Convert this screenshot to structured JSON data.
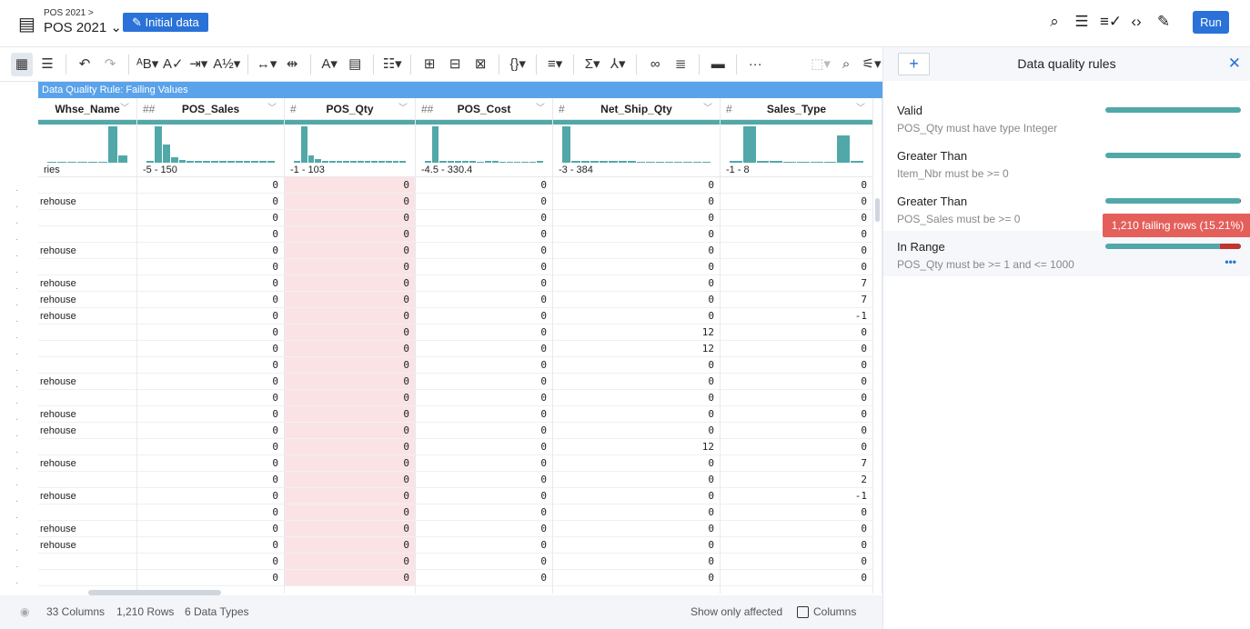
{
  "header": {
    "breadcrumb": "POS 2021 >",
    "title": "POS 2021 ⌄",
    "badge": "✎ Initial data",
    "run_label": "Run",
    "icons": [
      "search-icon",
      "list-icon",
      "checklist-icon",
      "code-icon",
      "eyedropper-icon"
    ]
  },
  "toolbar": {
    "items": [
      "grid-view-icon",
      "list-view-icon",
      "undo-icon",
      "redo-icon",
      "rename-icon",
      "compare-icon",
      "move-icon",
      "sort-icon",
      "split-icon",
      "merge-icon",
      "text-format-icon",
      "new-column-icon",
      "group-icon",
      "pivot-icon",
      "unpivot-icon",
      "transpose-icon",
      "json-icon",
      "filter-icon",
      "sum-icon",
      "branch-icon",
      "join-icon",
      "union-icon",
      "comment-icon",
      "more-icon",
      "select-icon",
      "lookup-icon",
      "settings-icon"
    ]
  },
  "grid": {
    "banner": "Data Quality Rule: Failing Values",
    "columns": [
      {
        "name": "Whse_Name",
        "type": "",
        "range": "ries",
        "hist": [
          0,
          0,
          0,
          0,
          0,
          0,
          100,
          20
        ]
      },
      {
        "name": "POS_Sales",
        "type": "##",
        "range": "-5 - 150",
        "hist": [
          5,
          100,
          50,
          15,
          8,
          5,
          5,
          5,
          5,
          5,
          5,
          5,
          5,
          5,
          5,
          5
        ]
      },
      {
        "name": "POS_Qty",
        "type": "#",
        "range": "-1 - 103",
        "hist": [
          5,
          100,
          20,
          10,
          5,
          5,
          5,
          5,
          5,
          5,
          5,
          5,
          5,
          5,
          5,
          5
        ]
      },
      {
        "name": "POS_Cost",
        "type": "##",
        "range": "-4.5 - 330.4",
        "hist": [
          5,
          100,
          5,
          5,
          5,
          5,
          5,
          3,
          5,
          5,
          3,
          3,
          3,
          3,
          3,
          5
        ]
      },
      {
        "name": "Net_Ship_Qty",
        "type": "#",
        "range": "-3 - 384",
        "hist": [
          100,
          5,
          5,
          5,
          5,
          5,
          5,
          5,
          3,
          3,
          3,
          3,
          3,
          3,
          3,
          3
        ]
      },
      {
        "name": "Sales_Type",
        "type": "#",
        "range": "-1 - 8",
        "hist": [
          5,
          100,
          5,
          5,
          3,
          3,
          3,
          3,
          75,
          5
        ]
      }
    ],
    "whse": [
      "",
      "rehouse",
      "",
      "",
      "rehouse",
      "",
      "rehouse",
      "rehouse",
      "rehouse",
      "",
      "",
      "",
      "rehouse",
      "",
      "rehouse",
      "rehouse",
      "",
      "rehouse",
      "",
      "rehouse",
      "",
      "rehouse",
      "rehouse",
      "",
      ""
    ],
    "pos_sales": [
      0,
      0,
      0,
      0,
      0,
      0,
      0,
      0,
      0,
      0,
      0,
      0,
      0,
      0,
      0,
      0,
      0,
      0,
      0,
      0,
      0,
      0,
      0,
      0,
      0
    ],
    "pos_qty": [
      0,
      0,
      0,
      0,
      0,
      0,
      0,
      0,
      0,
      0,
      0,
      0,
      0,
      0,
      0,
      0,
      0,
      0,
      0,
      0,
      0,
      0,
      0,
      0,
      0
    ],
    "pos_cost": [
      0,
      0,
      0,
      0,
      0,
      0,
      0,
      0,
      0,
      0,
      0,
      0,
      0,
      0,
      0,
      0,
      0,
      0,
      0,
      0,
      0,
      0,
      0,
      0,
      0
    ],
    "net_ship_qty": [
      0,
      0,
      0,
      0,
      0,
      0,
      0,
      0,
      0,
      12,
      12,
      0,
      0,
      0,
      0,
      0,
      12,
      0,
      0,
      0,
      0,
      0,
      0,
      0,
      0
    ],
    "sales_type": [
      0,
      0,
      0,
      0,
      0,
      0,
      7,
      7,
      -1,
      0,
      0,
      0,
      0,
      0,
      0,
      0,
      0,
      7,
      2,
      -1,
      0,
      0,
      0,
      0,
      0
    ]
  },
  "status": {
    "columns": "33 Columns",
    "rows": "1,210 Rows",
    "types": "6 Data Types",
    "show_only": "Show only affected",
    "columns_toggle": "Columns"
  },
  "panel": {
    "title": "Data quality rules",
    "add": "+",
    "close": "✕",
    "rules": [
      {
        "name": "Valid",
        "desc": "POS_Qty must have type Integer",
        "fail_pct": 0
      },
      {
        "name": "Greater Than",
        "desc": "Item_Nbr must be >= 0",
        "fail_pct": 0
      },
      {
        "name": "Greater Than",
        "desc": "POS_Sales must be >= 0",
        "fail_pct": 1
      },
      {
        "name": "In Range",
        "desc": "POS_Qty must be >= 1 and <= 1000",
        "fail_pct": 15.21
      }
    ],
    "tooltip": "1,210 failing rows (15.21%)",
    "more": "•••",
    "colors": {
      "pass": "#52a8a8",
      "fail": "#c0352e",
      "accent": "#2a72d8"
    }
  }
}
